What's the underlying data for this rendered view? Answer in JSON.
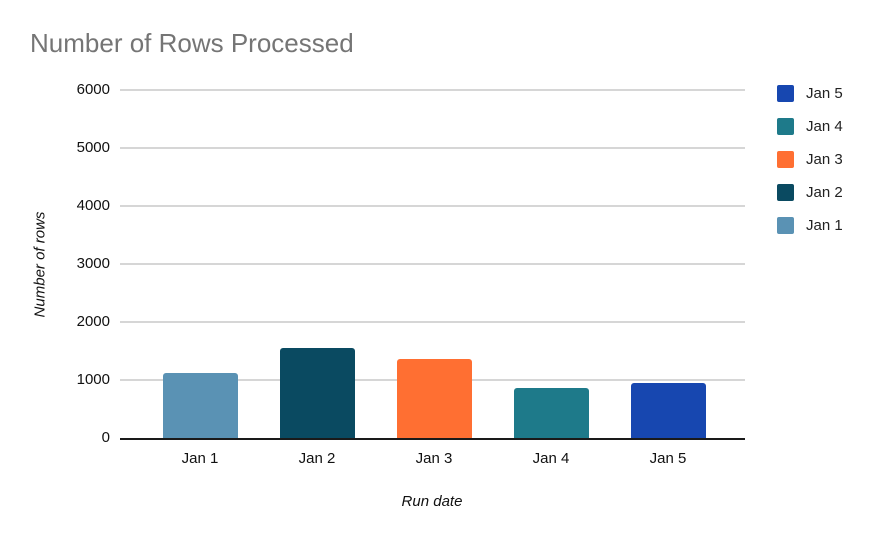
{
  "chart_data": {
    "type": "bar",
    "title": "Number of Rows Processed",
    "title_color": "#757575",
    "xlabel": "Run date",
    "ylabel": "Number of rows",
    "categories": [
      "Jan 1",
      "Jan 2",
      "Jan 3",
      "Jan 4",
      "Jan 5"
    ],
    "values": [
      1120,
      1550,
      1360,
      870,
      940
    ],
    "colors": [
      "#5A92B4",
      "#0A4A61",
      "#FF6F32",
      "#1E7A8A",
      "#1747B0"
    ],
    "ylim": [
      0,
      6000
    ],
    "yticks": [
      0,
      1000,
      2000,
      3000,
      4000,
      5000,
      6000
    ],
    "grid": true,
    "gridline_color": "#d6d6d6",
    "axis_line_color": "#1a1a1a",
    "legend_position": "right",
    "legend": [
      {
        "label": "Jan 5",
        "color": "#1747B0"
      },
      {
        "label": "Jan 4",
        "color": "#1E7A8A"
      },
      {
        "label": "Jan 3",
        "color": "#FF6F32"
      },
      {
        "label": "Jan 2",
        "color": "#0A4A61"
      },
      {
        "label": "Jan 1",
        "color": "#5A92B4"
      }
    ]
  }
}
